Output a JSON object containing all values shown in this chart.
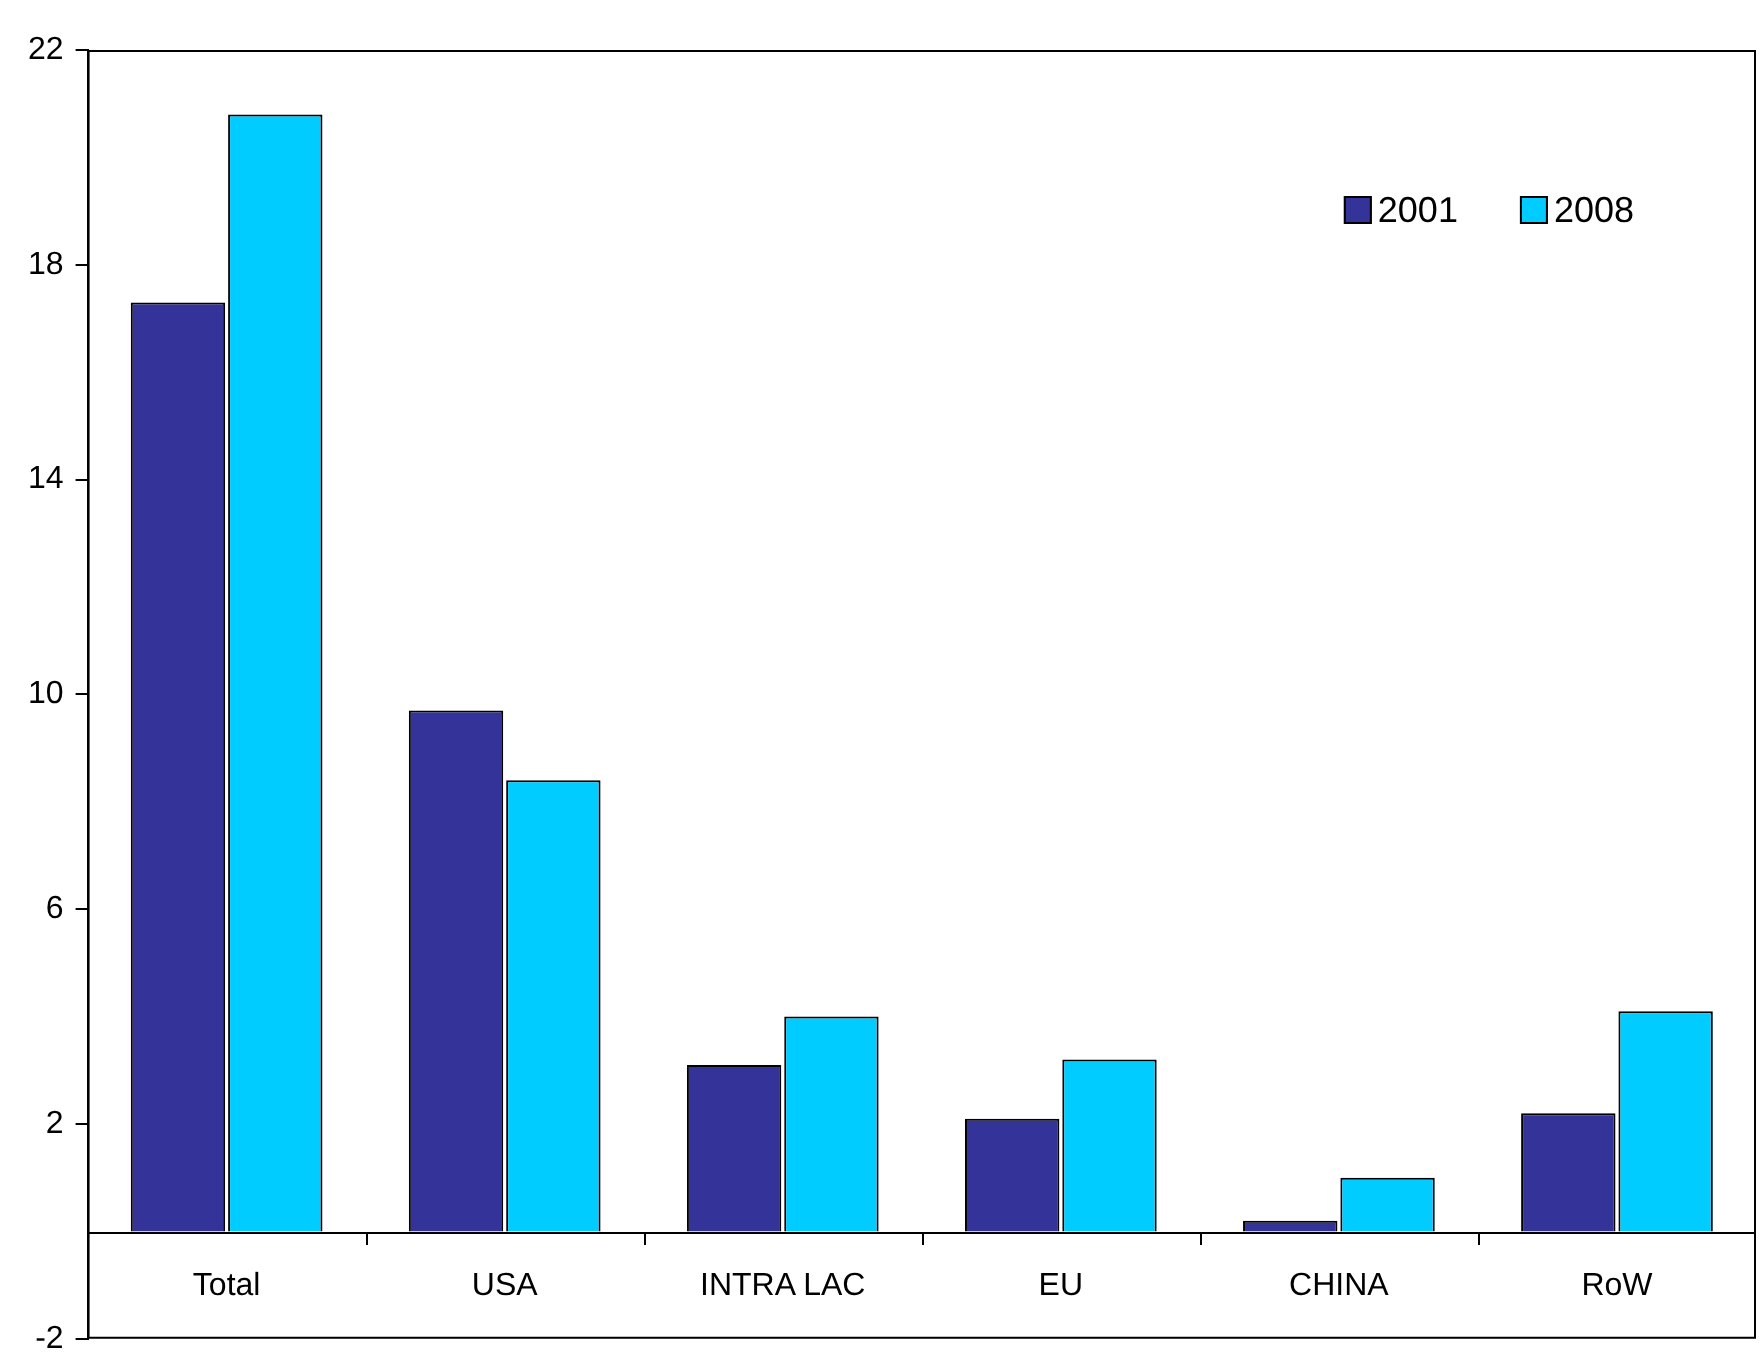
{
  "chart_data": {
    "type": "bar",
    "categories": [
      "Total",
      "USA",
      "INTRA LAC",
      "EU",
      "CHINA",
      "RoW"
    ],
    "series": [
      {
        "name": "2001",
        "color": "#333399",
        "values": [
          17.3,
          9.7,
          3.1,
          2.1,
          0.2,
          2.2
        ]
      },
      {
        "name": "2008",
        "color": "#00ccff",
        "values": [
          20.8,
          8.4,
          4.0,
          3.2,
          1.0,
          4.1
        ]
      }
    ],
    "ylim": [
      -2,
      22
    ],
    "yticks": [
      -2,
      2,
      6,
      10,
      14,
      18,
      22
    ],
    "grid": false,
    "legend": "top right"
  }
}
